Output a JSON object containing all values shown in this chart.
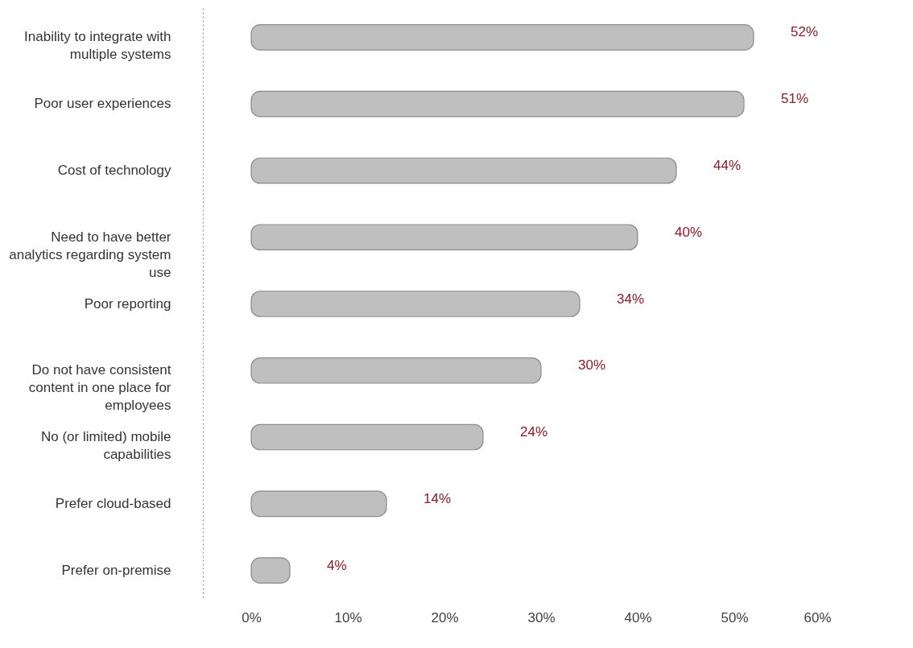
{
  "chart_data": {
    "type": "bar",
    "orientation": "horizontal",
    "categories": [
      "Inability to integrate with multiple systems",
      "Poor user experiences",
      "Cost of technology",
      "Need to have better analytics regarding system use",
      "Poor reporting",
      "Do not have consistent content in one place for employees",
      "No (or limited) mobile capabilities",
      "Prefer cloud-based",
      "Prefer on-premise"
    ],
    "values": [
      52,
      51,
      44,
      40,
      34,
      30,
      24,
      14,
      4
    ],
    "value_labels": [
      "52%",
      "51%",
      "44%",
      "40%",
      "34%",
      "30%",
      "24%",
      "14%",
      "4%"
    ],
    "color": "#bfbfbf",
    "xlim": [
      -5,
      60
    ],
    "xticks": [
      {
        "value": 0,
        "label": "0%"
      },
      {
        "value": 10,
        "label": "10%"
      },
      {
        "value": 20,
        "label": "20%"
      },
      {
        "value": 30,
        "label": "30%"
      },
      {
        "value": 40,
        "label": "40%"
      },
      {
        "value": 50,
        "label": "50%"
      },
      {
        "value": 60,
        "label": "60%"
      }
    ],
    "grid": false
  }
}
